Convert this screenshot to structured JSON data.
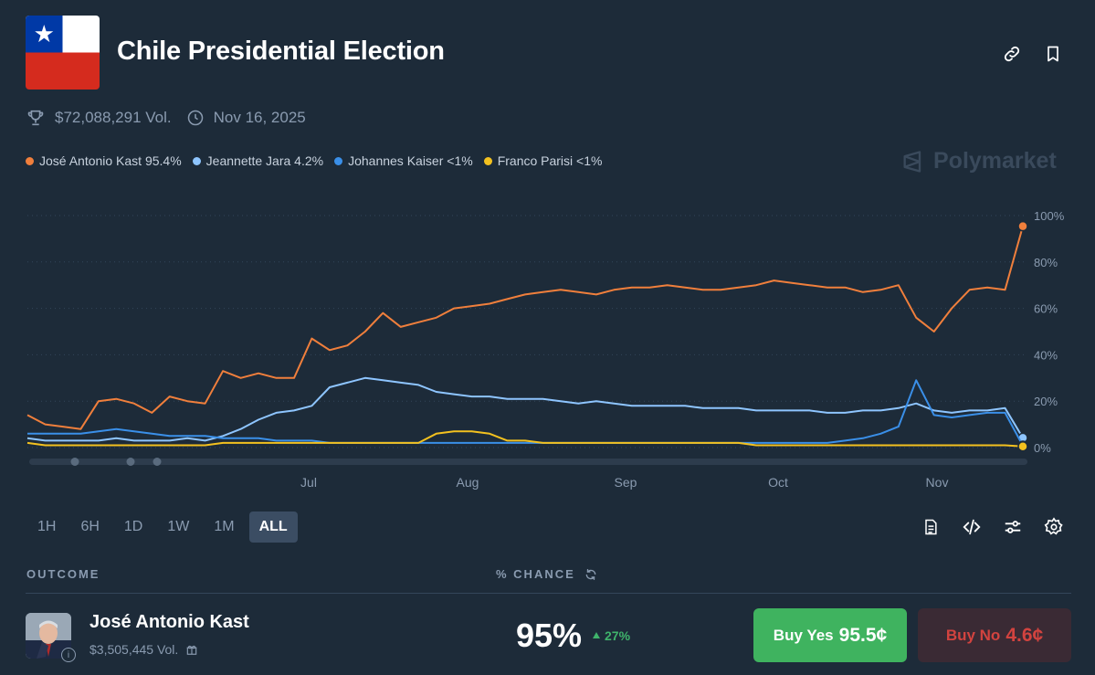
{
  "header": {
    "title": "Chile Presidential Election",
    "volume": "$72,088,291 Vol.",
    "date": "Nov 16, 2025"
  },
  "legend": [
    {
      "label": "José Antonio Kast 95.4%",
      "color": "#f07f3c"
    },
    {
      "label": "Jeannette Jara 4.2%",
      "color": "#8ec5ff"
    },
    {
      "label": "Johannes Kaiser <1%",
      "color": "#3a8fe8"
    },
    {
      "label": "Franco Parisi <1%",
      "color": "#f3c11f"
    }
  ],
  "watermark": "Polymarket",
  "chart_data": {
    "type": "line",
    "x_ticks": [
      "Jul",
      "Aug",
      "Sep",
      "Oct",
      "Nov"
    ],
    "y_ticks": [
      "100%",
      "80%",
      "60%",
      "40%",
      "20%",
      "0%"
    ],
    "ylim": [
      0,
      100
    ],
    "series": [
      {
        "name": "José Antonio Kast",
        "color": "#f07f3c",
        "values": [
          14,
          10,
          9,
          8,
          20,
          21,
          19,
          15,
          22,
          20,
          19,
          33,
          30,
          32,
          30,
          30,
          47,
          42,
          44,
          50,
          58,
          52,
          54,
          56,
          60,
          61,
          62,
          64,
          66,
          67,
          68,
          67,
          66,
          68,
          69,
          69,
          70,
          69,
          68,
          68,
          69,
          70,
          72,
          71,
          70,
          69,
          69,
          67,
          68,
          70,
          56,
          50,
          60,
          68,
          69,
          68,
          95.4
        ]
      },
      {
        "name": "Jeannette Jara",
        "color": "#8ec5ff",
        "values": [
          4,
          3,
          3,
          3,
          3,
          4,
          3,
          3,
          3,
          4,
          3,
          5,
          8,
          12,
          15,
          16,
          18,
          26,
          28,
          30,
          29,
          28,
          27,
          24,
          23,
          22,
          22,
          21,
          21,
          21,
          20,
          19,
          20,
          19,
          18,
          18,
          18,
          18,
          17,
          17,
          17,
          16,
          16,
          16,
          16,
          15,
          15,
          16,
          16,
          17,
          19,
          16,
          15,
          16,
          16,
          17,
          4.2
        ]
      },
      {
        "name": "Johannes Kaiser",
        "color": "#3a8fe8",
        "values": [
          6,
          6,
          6,
          6,
          7,
          8,
          7,
          6,
          5,
          5,
          5,
          4,
          4,
          4,
          3,
          3,
          3,
          2,
          2,
          2,
          2,
          2,
          2,
          2,
          2,
          2,
          2,
          2,
          2,
          2,
          2,
          2,
          2,
          2,
          2,
          2,
          2,
          2,
          2,
          2,
          2,
          2,
          2,
          2,
          2,
          2,
          3,
          4,
          6,
          9,
          29,
          14,
          13,
          14,
          15,
          15,
          0.8
        ]
      },
      {
        "name": "Franco Parisi",
        "color": "#f3c11f",
        "values": [
          2,
          1,
          1,
          1,
          1,
          1,
          1,
          1,
          1,
          1,
          1,
          2,
          2,
          2,
          2,
          2,
          2,
          2,
          2,
          2,
          2,
          2,
          2,
          6,
          7,
          7,
          6,
          3,
          3,
          2,
          2,
          2,
          2,
          2,
          2,
          2,
          2,
          2,
          2,
          2,
          2,
          1,
          1,
          1,
          1,
          1,
          1,
          1,
          1,
          1,
          1,
          1,
          1,
          1,
          1,
          1,
          0.5
        ]
      }
    ]
  },
  "ranges": [
    {
      "label": "1H",
      "active": false
    },
    {
      "label": "6H",
      "active": false
    },
    {
      "label": "1D",
      "active": false
    },
    {
      "label": "1W",
      "active": false
    },
    {
      "label": "1M",
      "active": false
    },
    {
      "label": "ALL",
      "active": true
    }
  ],
  "table": {
    "outcome_header": "OUTCOME",
    "chance_header": "% CHANCE"
  },
  "outcome": {
    "name": "José Antonio Kast",
    "volume": "$3,505,445 Vol.",
    "chance": "95%",
    "delta": "27%",
    "buy_yes_label": "Buy Yes",
    "buy_yes_price": "95.5¢",
    "buy_no_label": "Buy No",
    "buy_no_price": "4.6¢"
  }
}
